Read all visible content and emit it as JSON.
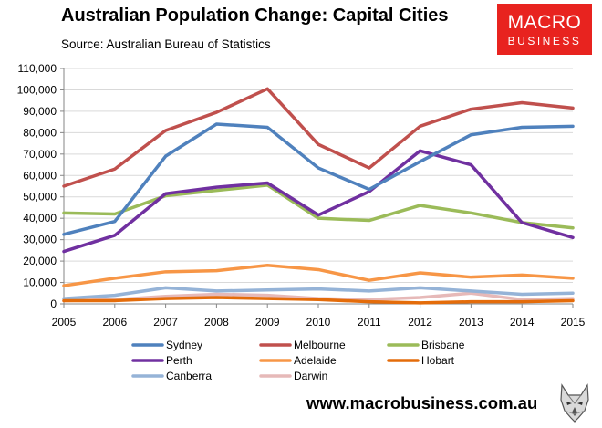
{
  "header": {
    "title": "Australian Population Change: Capital Cities",
    "source": "Source: Australian Bureau of Statistics"
  },
  "brand": {
    "line1": "MACRO",
    "line2": "BUSINESS",
    "color": "#e8231f",
    "url": "www.macrobusiness.com.au",
    "mascot_icon": "wolf-icon"
  },
  "chart_data": {
    "type": "line",
    "title": "Australian Population Change: Capital Cities",
    "xlabel": "",
    "ylabel": "",
    "x": [
      2005,
      2006,
      2007,
      2008,
      2009,
      2010,
      2011,
      2012,
      2013,
      2014,
      2015
    ],
    "x_tick_labels": [
      "2005",
      "2006",
      "2007",
      "2008",
      "2009",
      "2010",
      "2011",
      "2012",
      "2013",
      "2014",
      "2015"
    ],
    "ylim": [
      0,
      110000
    ],
    "y_ticks": [
      0,
      10000,
      20000,
      30000,
      40000,
      50000,
      60000,
      70000,
      80000,
      90000,
      100000,
      110000
    ],
    "y_tick_labels": [
      "0",
      "10,000",
      "20,000",
      "30,000",
      "40,000",
      "50,000",
      "60,000",
      "70,000",
      "80,000",
      "90,000",
      "100,000",
      "110,000"
    ],
    "grid": true,
    "legend_position": "bottom",
    "series": [
      {
        "name": "Sydney",
        "color": "#4f81bd",
        "values": [
          32500,
          38500,
          69000,
          84000,
          82500,
          63500,
          53500,
          66500,
          79000,
          82500,
          83000
        ]
      },
      {
        "name": "Melbourne",
        "color": "#c0504d",
        "values": [
          55000,
          63000,
          81000,
          89500,
          100500,
          74500,
          63500,
          83000,
          91000,
          94000,
          91500
        ]
      },
      {
        "name": "Brisbane",
        "color": "#9bbb59",
        "values": [
          42500,
          42000,
          50500,
          53000,
          55500,
          40000,
          39000,
          46000,
          42500,
          38000,
          35500
        ]
      },
      {
        "name": "Perth",
        "color": "#7030a0",
        "values": [
          24500,
          32000,
          51500,
          54500,
          56500,
          41500,
          52500,
          71500,
          65000,
          38000,
          31000
        ]
      },
      {
        "name": "Adelaide",
        "color": "#f79646",
        "values": [
          8500,
          12000,
          15000,
          15500,
          18000,
          16000,
          11000,
          14500,
          12500,
          13500,
          12000
        ]
      },
      {
        "name": "Hobart",
        "color": "#e46c0a",
        "values": [
          1500,
          1500,
          2500,
          3000,
          2500,
          2000,
          1000,
          500,
          1000,
          1000,
          1500
        ]
      },
      {
        "name": "Canberra",
        "color": "#95b3d7",
        "values": [
          2500,
          4000,
          7500,
          6000,
          6500,
          7000,
          6000,
          7500,
          6000,
          4500,
          5000
        ]
      },
      {
        "name": "Darwin",
        "color": "#e6b9b8",
        "values": [
          1500,
          2000,
          3500,
          4500,
          4000,
          2500,
          2000,
          3000,
          5000,
          2000,
          2500
        ]
      }
    ]
  }
}
